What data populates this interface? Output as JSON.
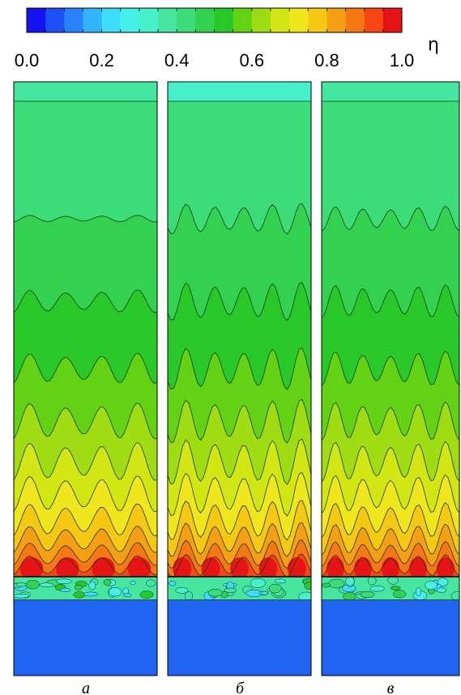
{
  "chart_data": {
    "type": "heatmap",
    "colorbar": {
      "symbol": "η",
      "range": [
        0.0,
        1.0
      ],
      "tick_labels": [
        "0.0",
        "0.2",
        "0.4",
        "0.6",
        "0.8",
        "1.0"
      ],
      "tick_values": [
        0.0,
        0.2,
        0.4,
        0.6,
        0.8,
        1.0
      ],
      "levels": 20,
      "colors": [
        "#1414f0",
        "#1e50f5",
        "#2882f8",
        "#32b4fa",
        "#3cdcfa",
        "#46f0e6",
        "#46f0c8",
        "#46e6a0",
        "#3cdc78",
        "#32d250",
        "#28c828",
        "#64d214",
        "#a0dc14",
        "#d2e614",
        "#f0e61e",
        "#f5c814",
        "#f5a014",
        "#f57814",
        "#f54614",
        "#e61414"
      ],
      "orientation": "horizontal",
      "placement": "top"
    },
    "panels": [
      {
        "label": "а",
        "contour_levels": [
          0.4,
          0.45,
          0.5,
          0.55,
          0.6,
          0.65,
          0.7,
          0.75,
          0.8,
          0.85,
          0.9
        ],
        "wave_count": 4,
        "wave_amplitude": [
          0.0,
          0.035,
          0.12,
          0.16,
          0.19,
          0.2,
          0.19,
          0.17,
          0.14,
          0.12,
          0.1
        ],
        "near_wall_peak": 0.95,
        "top_value": 0.37
      },
      {
        "label": "б",
        "contour_levels": [
          0.4,
          0.45,
          0.5,
          0.55,
          0.6,
          0.65,
          0.7,
          0.75,
          0.8,
          0.85,
          0.9
        ],
        "wave_count": 5,
        "wave_amplitude": [
          0.0,
          0.16,
          0.2,
          0.22,
          0.23,
          0.24,
          0.23,
          0.21,
          0.18,
          0.15,
          0.12
        ],
        "near_wall_peak": 0.95,
        "top_value": 0.33
      },
      {
        "label": "в",
        "contour_levels": [
          0.4,
          0.45,
          0.5,
          0.55,
          0.6,
          0.65,
          0.7,
          0.75,
          0.8,
          0.85,
          0.9
        ],
        "wave_count": 5,
        "wave_amplitude": [
          0.0,
          0.13,
          0.17,
          0.18,
          0.2,
          0.21,
          0.2,
          0.18,
          0.16,
          0.13,
          0.11
        ],
        "near_wall_peak": 0.95,
        "top_value": 0.36
      }
    ],
    "jet_layer": {
      "value_range": [
        0.2,
        0.55
      ]
    },
    "bottom_region_value": 0.15
  }
}
